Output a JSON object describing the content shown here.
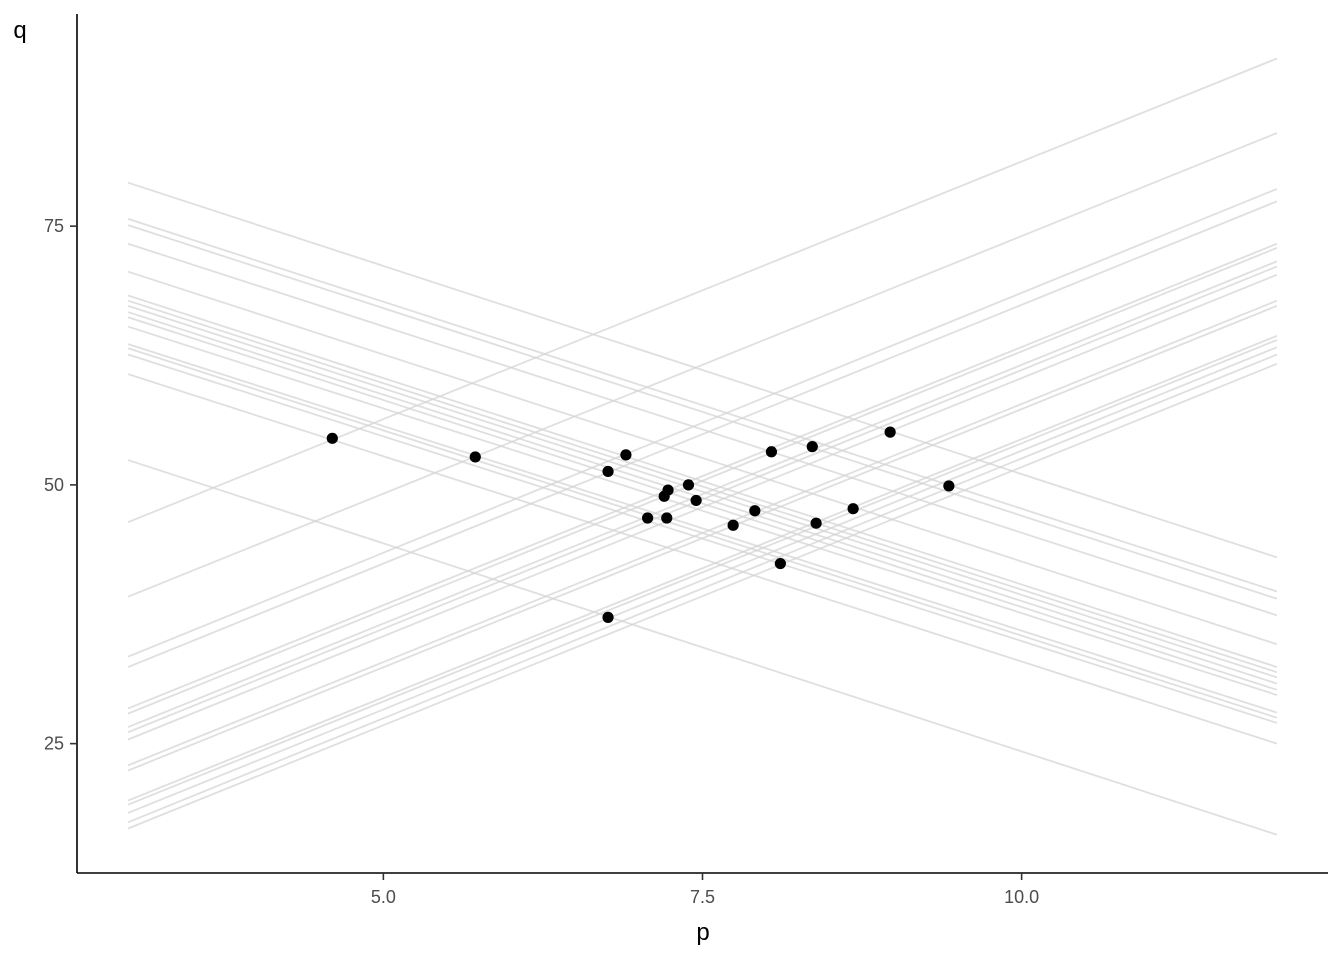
{
  "chart_data": {
    "type": "scatter",
    "title": "",
    "xlabel": "p",
    "ylabel": "q",
    "xlim": [
      2.6,
      12.4
    ],
    "ylim": [
      12.5,
      95.5
    ],
    "x_ticks": [
      5.0,
      7.5,
      10.0
    ],
    "x_tick_labels": [
      "5.0",
      "7.5",
      "10.0"
    ],
    "y_ticks": [
      25,
      50,
      75
    ],
    "y_tick_labels": [
      "25",
      "50",
      "75"
    ],
    "grid": false,
    "legend": "none",
    "colors": {
      "points": "#000000",
      "lines": "#d4d4d4",
      "axis": "#000000"
    },
    "points": [
      {
        "x": 4.6,
        "y": 54.5
      },
      {
        "x": 5.72,
        "y": 52.7
      },
      {
        "x": 6.76,
        "y": 51.3
      },
      {
        "x": 6.9,
        "y": 52.9
      },
      {
        "x": 7.07,
        "y": 46.8
      },
      {
        "x": 7.2,
        "y": 48.9
      },
      {
        "x": 7.23,
        "y": 49.5
      },
      {
        "x": 7.22,
        "y": 46.8
      },
      {
        "x": 7.39,
        "y": 50.0
      },
      {
        "x": 7.45,
        "y": 48.5
      },
      {
        "x": 7.74,
        "y": 46.1
      },
      {
        "x": 7.91,
        "y": 47.5
      },
      {
        "x": 8.04,
        "y": 53.2
      },
      {
        "x": 8.11,
        "y": 42.4
      },
      {
        "x": 8.36,
        "y": 53.7
      },
      {
        "x": 8.39,
        "y": 46.3
      },
      {
        "x": 8.68,
        "y": 47.7
      },
      {
        "x": 8.97,
        "y": 55.1
      },
      {
        "x": 9.43,
        "y": 49.9
      },
      {
        "x": 6.76,
        "y": 37.2
      }
    ],
    "lines": [
      {
        "x": [
          3.0,
          12.0
        ],
        "y": [
          79.2,
          43.0
        ]
      },
      {
        "x": [
          3.0,
          12.0
        ],
        "y": [
          75.7,
          39.7
        ]
      },
      {
        "x": [
          3.0,
          12.0
        ],
        "y": [
          75.1,
          39.0
        ]
      },
      {
        "x": [
          3.0,
          12.0
        ],
        "y": [
          73.3,
          37.4
        ]
      },
      {
        "x": [
          3.0,
          12.0
        ],
        "y": [
          70.6,
          34.6
        ]
      },
      {
        "x": [
          3.0,
          12.0
        ],
        "y": [
          68.3,
          32.4
        ]
      },
      {
        "x": [
          3.0,
          12.0
        ],
        "y": [
          67.8,
          31.9
        ]
      },
      {
        "x": [
          3.0,
          12.0
        ],
        "y": [
          67.3,
          31.4
        ]
      },
      {
        "x": [
          3.0,
          12.0
        ],
        "y": [
          66.7,
          30.8
        ]
      },
      {
        "x": [
          3.0,
          12.0
        ],
        "y": [
          66.2,
          30.2
        ]
      },
      {
        "x": [
          3.0,
          12.0
        ],
        "y": [
          65.3,
          29.7
        ]
      },
      {
        "x": [
          3.0,
          12.0
        ],
        "y": [
          63.6,
          28.0
        ]
      },
      {
        "x": [
          3.0,
          12.0
        ],
        "y": [
          63.2,
          27.5
        ]
      },
      {
        "x": [
          3.0,
          12.0
        ],
        "y": [
          62.6,
          27.0
        ]
      },
      {
        "x": [
          3.0,
          12.0
        ],
        "y": [
          60.7,
          25.0
        ]
      },
      {
        "x": [
          3.0,
          12.0
        ],
        "y": [
          52.4,
          16.2
        ]
      },
      {
        "x": [
          3.0,
          12.0
        ],
        "y": [
          46.4,
          91.2
        ]
      },
      {
        "x": [
          3.0,
          12.0
        ],
        "y": [
          39.2,
          84.0
        ]
      },
      {
        "x": [
          3.0,
          12.0
        ],
        "y": [
          33.4,
          78.6
        ]
      },
      {
        "x": [
          3.0,
          12.0
        ],
        "y": [
          32.4,
          77.4
        ]
      },
      {
        "x": [
          3.0,
          12.0
        ],
        "y": [
          28.4,
          73.3
        ]
      },
      {
        "x": [
          3.0,
          12.0
        ],
        "y": [
          27.9,
          72.9
        ]
      },
      {
        "x": [
          3.0,
          12.0
        ],
        "y": [
          26.6,
          71.6
        ]
      },
      {
        "x": [
          3.0,
          12.0
        ],
        "y": [
          26.1,
          71.1
        ]
      },
      {
        "x": [
          3.0,
          12.0
        ],
        "y": [
          25.4,
          70.3
        ]
      },
      {
        "x": [
          3.0,
          12.0
        ],
        "y": [
          22.9,
          67.8
        ]
      },
      {
        "x": [
          3.0,
          12.0
        ],
        "y": [
          22.4,
          67.3
        ]
      },
      {
        "x": [
          3.0,
          12.0
        ],
        "y": [
          19.5,
          64.4
        ]
      },
      {
        "x": [
          3.0,
          12.0
        ],
        "y": [
          19.1,
          64.0
        ]
      },
      {
        "x": [
          3.0,
          12.0
        ],
        "y": [
          18.3,
          63.3
        ]
      },
      {
        "x": [
          3.0,
          12.0
        ],
        "y": [
          17.4,
          62.6
        ]
      },
      {
        "x": [
          3.0,
          12.0
        ],
        "y": [
          16.8,
          61.7
        ]
      }
    ]
  }
}
